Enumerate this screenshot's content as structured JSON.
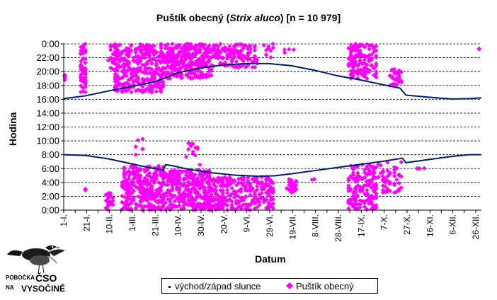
{
  "chart_data": {
    "type": "scatter",
    "title_main": "Puštík obecný (",
    "title_italic": "Strix aluco",
    "title_rest": ") [n = 10 979]",
    "xlabel": "Datum",
    "ylabel": "Hodina",
    "y_tick_labels": [
      "0:00",
      "2:00",
      "4:00",
      "6:00",
      "8:00",
      "10:00",
      "12:00",
      "14:00",
      "16:00",
      "18:00",
      "20:00",
      "22:00",
      "0:00"
    ],
    "y_range_hours": [
      0,
      24
    ],
    "x_range_day": [
      1,
      366
    ],
    "x_ticks": [
      {
        "label": "1-I.",
        "day": 1
      },
      {
        "label": "21-I.",
        "day": 21
      },
      {
        "label": "10-II.",
        "day": 41
      },
      {
        "label": "1-III.",
        "day": 61
      },
      {
        "label": "21-III.",
        "day": 81
      },
      {
        "label": "10-IV.",
        "day": 101
      },
      {
        "label": "30-IV.",
        "day": 121
      },
      {
        "label": "20-V.",
        "day": 141
      },
      {
        "label": "9-VI.",
        "day": 161
      },
      {
        "label": "29-VI.",
        "day": 181
      },
      {
        "label": "19-VII.",
        "day": 201
      },
      {
        "label": "8-VIII.",
        "day": 221
      },
      {
        "label": "28-VIII.",
        "day": 241
      },
      {
        "label": "17-IX.",
        "day": 261
      },
      {
        "label": "7-X.",
        "day": 281
      },
      {
        "label": "27-X.",
        "day": 301
      },
      {
        "label": "16-XI.",
        "day": 321
      },
      {
        "label": "6-XII.",
        "day": 341
      },
      {
        "label": "26-XII.",
        "day": 361
      }
    ],
    "grid": "horizontal dashed",
    "series": [
      {
        "name": "východ/západ slunce",
        "color": "#001a6e",
        "sunrise": [
          [
            1,
            8.0
          ],
          [
            20,
            7.9
          ],
          [
            40,
            7.4
          ],
          [
            60,
            6.7
          ],
          [
            75,
            6.15
          ],
          [
            88,
            5.8
          ],
          [
            90,
            6.55
          ],
          [
            95,
            6.45
          ],
          [
            110,
            5.9
          ],
          [
            130,
            5.4
          ],
          [
            150,
            5.05
          ],
          [
            170,
            4.9
          ],
          [
            185,
            4.95
          ],
          [
            200,
            5.25
          ],
          [
            220,
            5.7
          ],
          [
            240,
            6.15
          ],
          [
            260,
            6.6
          ],
          [
            280,
            7.05
          ],
          [
            297,
            7.5
          ],
          [
            300,
            6.85
          ],
          [
            320,
            7.3
          ],
          [
            340,
            7.75
          ],
          [
            355,
            8.0
          ],
          [
            366,
            8.0
          ]
        ],
        "sunset": [
          [
            1,
            16.1
          ],
          [
            20,
            16.5
          ],
          [
            40,
            17.2
          ],
          [
            60,
            17.85
          ],
          [
            80,
            18.5
          ],
          [
            90,
            19.1
          ],
          [
            100,
            19.8
          ],
          [
            120,
            20.5
          ],
          [
            140,
            20.95
          ],
          [
            160,
            21.15
          ],
          [
            180,
            21.15
          ],
          [
            200,
            20.85
          ],
          [
            220,
            20.2
          ],
          [
            240,
            19.4
          ],
          [
            260,
            18.8
          ],
          [
            280,
            18.1
          ],
          [
            295,
            17.6
          ],
          [
            300,
            16.6
          ],
          [
            320,
            16.3
          ],
          [
            340,
            16.05
          ],
          [
            355,
            16.1
          ],
          [
            366,
            16.2
          ]
        ]
      },
      {
        "name": "Puštík obecný",
        "color": "#ff00ff",
        "marker": "diamond",
        "clusters": [
          {
            "day_min": 1,
            "day_max": 3,
            "hour_min": 18.5,
            "hour_max": 19.5,
            "count": 6
          },
          {
            "day_min": 15,
            "day_max": 21,
            "hour_min": 17.0,
            "hour_max": 24.0,
            "count": 60
          },
          {
            "day_min": 18,
            "day_max": 22,
            "hour_min": 2.8,
            "hour_max": 3.4,
            "count": 3
          },
          {
            "day_min": 38,
            "day_max": 45,
            "hour_min": 0.0,
            "hour_max": 2.5,
            "count": 25
          },
          {
            "day_min": 40,
            "day_max": 48,
            "hour_min": 20.0,
            "hour_max": 24.0,
            "count": 25
          },
          {
            "day_min": 45,
            "day_max": 90,
            "hour_min": 17.0,
            "hour_max": 24.0,
            "count": 330
          },
          {
            "day_min": 52,
            "day_max": 90,
            "hour_min": 0.0,
            "hour_max": 6.5,
            "count": 310
          },
          {
            "day_min": 63,
            "day_max": 70,
            "hour_min": 8.0,
            "hour_max": 10.6,
            "count": 6
          },
          {
            "day_min": 90,
            "day_max": 130,
            "hour_min": 19.0,
            "hour_max": 24.0,
            "count": 300
          },
          {
            "day_min": 92,
            "day_max": 130,
            "hour_min": 0.0,
            "hour_max": 5.8,
            "count": 310
          },
          {
            "day_min": 108,
            "day_max": 120,
            "hour_min": 6.0,
            "hour_max": 9.7,
            "count": 14
          },
          {
            "day_min": 130,
            "day_max": 170,
            "hour_min": 20.6,
            "hour_max": 24.0,
            "count": 130
          },
          {
            "day_min": 130,
            "day_max": 185,
            "hour_min": 0.0,
            "hour_max": 4.8,
            "count": 260
          },
          {
            "day_min": 175,
            "day_max": 185,
            "hour_min": 22.0,
            "hour_max": 24.0,
            "count": 10
          },
          {
            "day_min": 195,
            "day_max": 204,
            "hour_min": 2.5,
            "hour_max": 4.6,
            "count": 25
          },
          {
            "day_min": 193,
            "day_max": 202,
            "hour_min": 22.5,
            "hour_max": 23.5,
            "count": 4
          },
          {
            "day_min": 218,
            "day_max": 222,
            "hour_min": 4.2,
            "hour_max": 4.8,
            "count": 2
          },
          {
            "day_min": 250,
            "day_max": 275,
            "hour_min": 19.0,
            "hour_max": 24.0,
            "count": 130
          },
          {
            "day_min": 250,
            "day_max": 275,
            "hour_min": 0.0,
            "hour_max": 6.6,
            "count": 160
          },
          {
            "day_min": 276,
            "day_max": 296,
            "hour_min": 2.5,
            "hour_max": 7.0,
            "count": 50
          },
          {
            "day_min": 286,
            "day_max": 297,
            "hour_min": 18.0,
            "hour_max": 20.5,
            "count": 30
          },
          {
            "day_min": 310,
            "day_max": 316,
            "hour_min": 5.7,
            "hour_max": 6.3,
            "count": 4
          },
          {
            "day_min": 364,
            "day_max": 366,
            "hour_min": 23.0,
            "hour_max": 23.5,
            "count": 2
          }
        ]
      }
    ]
  },
  "legend": {
    "sun_label": "východ/západ slunce",
    "owl_label": "Puštík obecný"
  },
  "logo": {
    "line1": "POBOČKA",
    "line2": "ČSO",
    "line3": "NA",
    "line4": "VYSOČINĚ"
  }
}
